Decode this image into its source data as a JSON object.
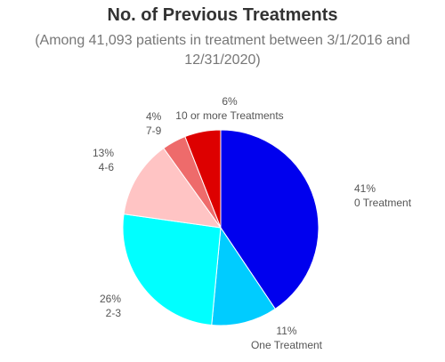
{
  "chart_data": {
    "type": "pie",
    "title": "No. of Previous Treatments",
    "subtitle_lines": [
      "(Among 41,093 patients in treatment between 3/1/2016 and",
      "12/31/2020)"
    ],
    "slices": [
      {
        "label": "0 Treatment",
        "value": 41,
        "value_label": "41%",
        "color": "#0000ee"
      },
      {
        "label": "One Treatment",
        "value": 11,
        "value_label": "11%",
        "color": "#00ccff"
      },
      {
        "label": "2-3",
        "value": 26,
        "value_label": "26%",
        "color": "#00ffff"
      },
      {
        "label": "4-6",
        "value": 13,
        "value_label": "13%",
        "color": "#ffc4c4"
      },
      {
        "label": "7-9",
        "value": 4,
        "value_label": "4%",
        "color": "#ee6b6b"
      },
      {
        "label": "10 or more Treatments",
        "value": 6,
        "value_label": "6%",
        "color": "#dd0000"
      }
    ],
    "start": "12 o'clock",
    "direction": "clockwise"
  }
}
